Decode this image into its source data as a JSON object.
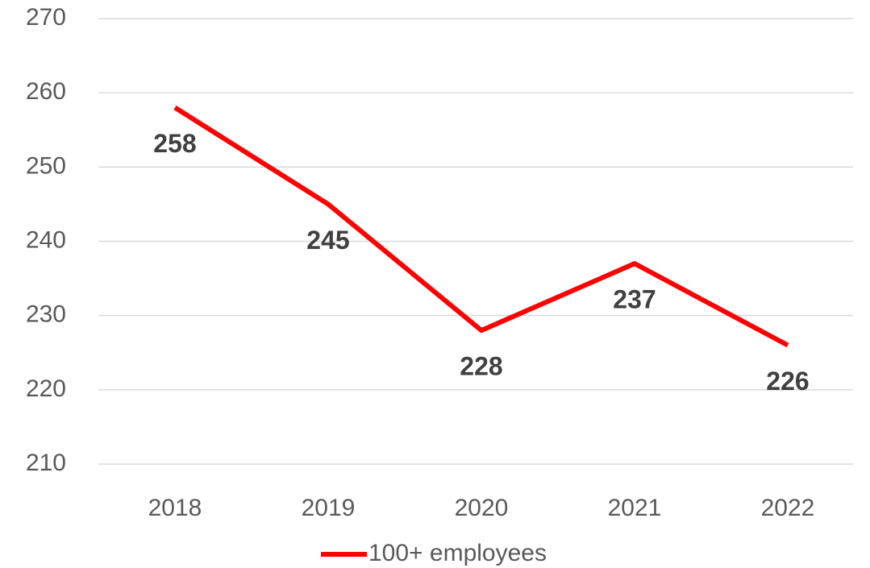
{
  "chart_data": {
    "type": "line",
    "categories": [
      "2018",
      "2019",
      "2020",
      "2021",
      "2022"
    ],
    "series": [
      {
        "name": "100+ employees",
        "color": "#ff0000",
        "values": [
          258,
          245,
          228,
          237,
          226
        ]
      }
    ],
    "ylim": [
      210,
      270
    ],
    "yticks": [
      210,
      220,
      230,
      240,
      250,
      260,
      270
    ],
    "grid": true,
    "legend": "bottom",
    "data_labels": true
  }
}
